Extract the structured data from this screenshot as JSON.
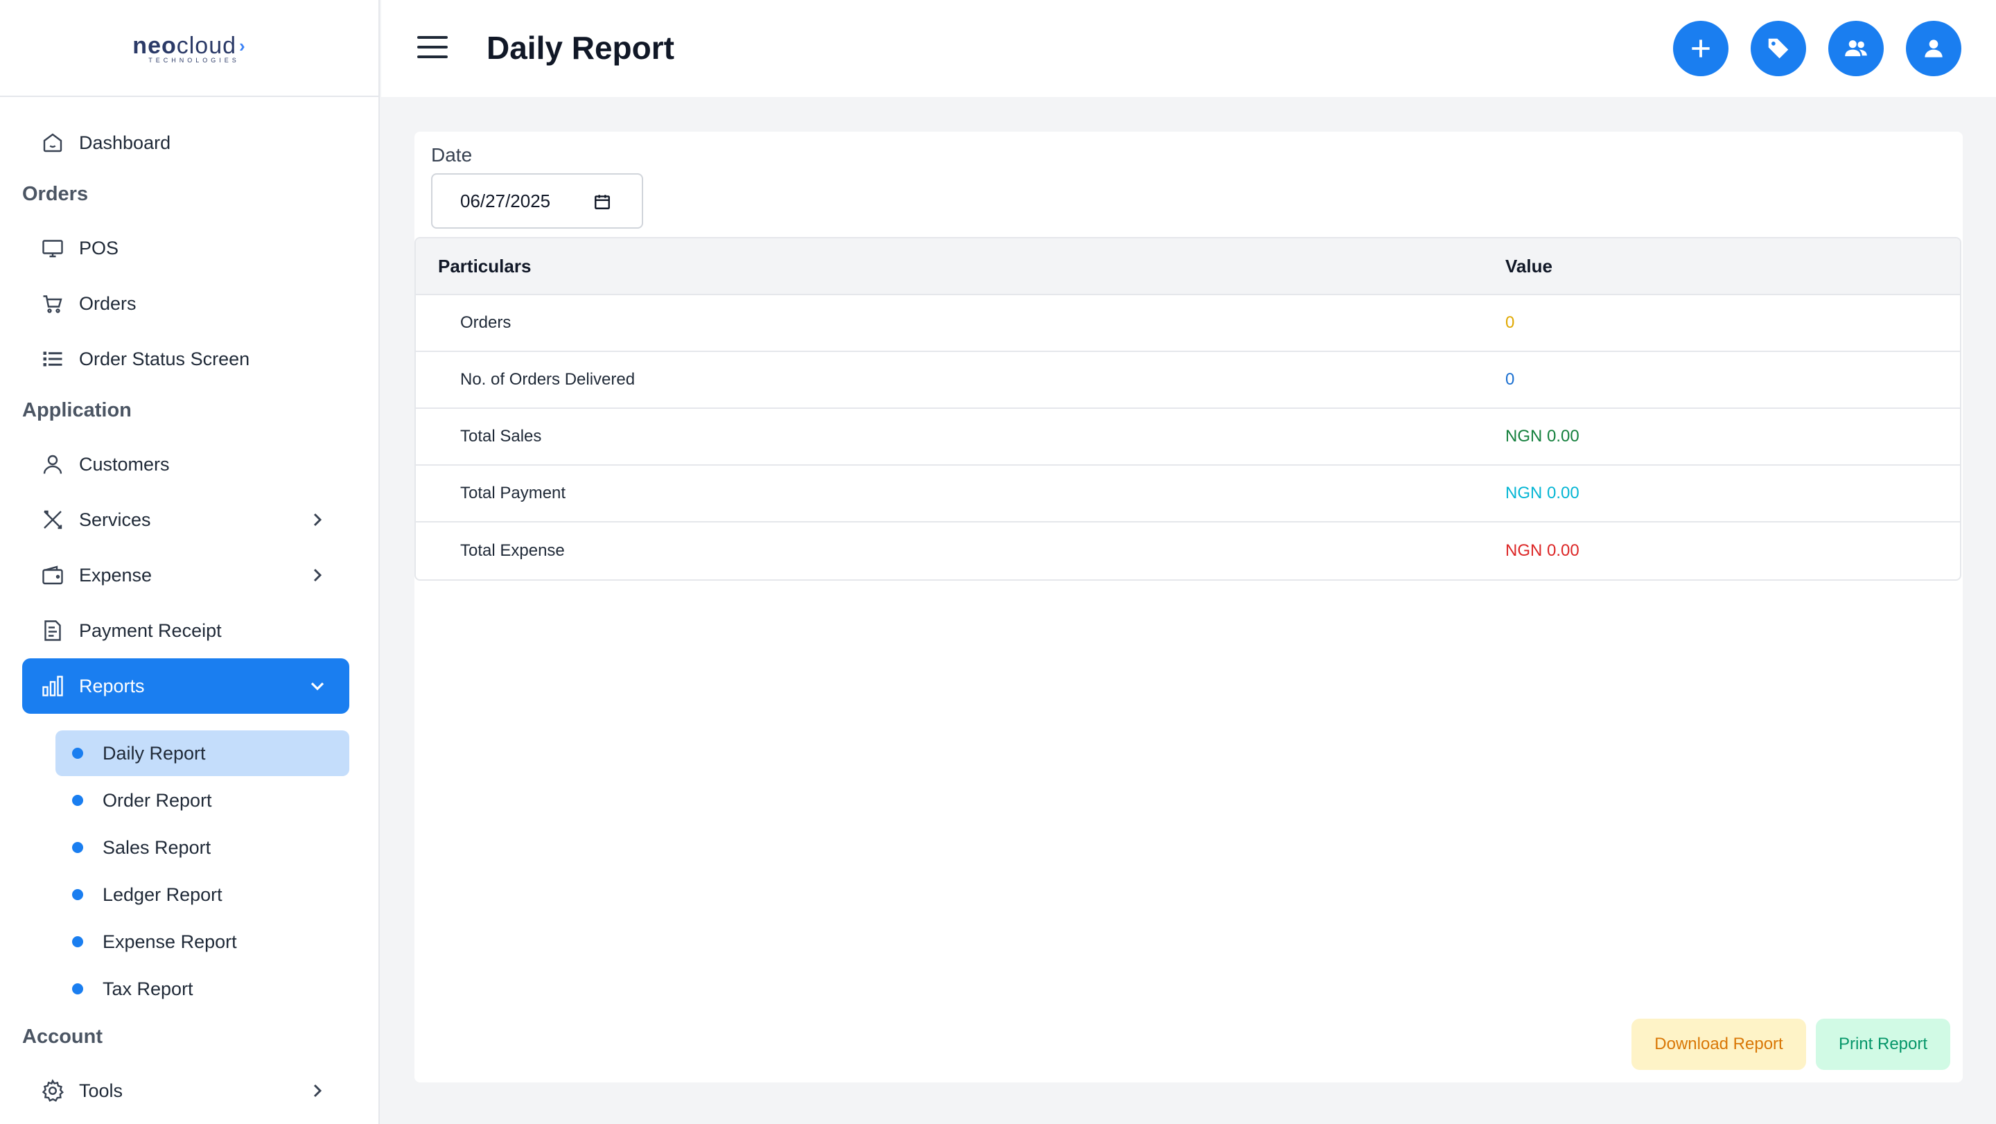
{
  "logo": {
    "brand_part1": "neo",
    "brand_part2": "cloud",
    "tagline": "TECHNOLOGIES"
  },
  "header": {
    "title": "Daily Report"
  },
  "sidebar": {
    "dashboard": "Dashboard",
    "section_orders": "Orders",
    "pos": "POS",
    "orders": "Orders",
    "order_status": "Order Status Screen",
    "section_application": "Application",
    "customers": "Customers",
    "services": "Services",
    "expense": "Expense",
    "payment_receipt": "Payment Receipt",
    "reports": "Reports",
    "reports_sub": [
      "Daily Report",
      "Order Report",
      "Sales Report",
      "Ledger Report",
      "Expense Report",
      "Tax Report"
    ],
    "section_account": "Account",
    "tools": "Tools"
  },
  "filter": {
    "date_label": "Date",
    "date_value": "06/27/2025"
  },
  "table": {
    "headers": [
      "Particulars",
      "Value"
    ],
    "rows": [
      {
        "label": "Orders",
        "value": "0",
        "color": "#e0a800"
      },
      {
        "label": "No. of Orders Delivered",
        "value": "0",
        "color": "#1a6fd0"
      },
      {
        "label": "Total Sales",
        "value": "NGN 0.00",
        "color": "#15803d"
      },
      {
        "label": "Total Payment",
        "value": "NGN 0.00",
        "color": "#06b6d4"
      },
      {
        "label": "Total Expense",
        "value": "NGN 0.00",
        "color": "#dc2626"
      }
    ]
  },
  "actions": {
    "download": "Download Report",
    "print": "Print Report"
  },
  "colors": {
    "accent": "#1a7ef0"
  }
}
